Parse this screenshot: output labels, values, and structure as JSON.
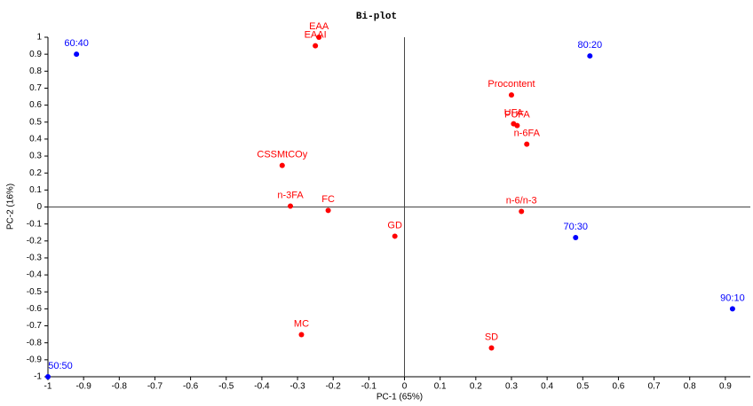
{
  "chart_data": {
    "type": "scatter",
    "title": "Bi-plot",
    "x_label": "PC-1 (65%)",
    "y_label": "PC-2 (16%)",
    "xlim": [
      -1,
      0.97
    ],
    "ylim": [
      -1,
      1
    ],
    "xticks": [
      -1,
      -0.9,
      -0.8,
      -0.7,
      -0.6,
      -0.5,
      -0.4,
      -0.3,
      -0.2,
      -0.1,
      0,
      0.1,
      0.2,
      0.3,
      0.4,
      0.5,
      0.6,
      0.7,
      0.8,
      0.9
    ],
    "yticks": [
      -1,
      -0.9,
      -0.8,
      -0.7,
      -0.6,
      -0.5,
      -0.4,
      -0.3,
      -0.2,
      -0.1,
      0,
      0.1,
      0.2,
      0.3,
      0.4,
      0.5,
      0.6,
      0.7,
      0.8,
      0.9,
      1
    ],
    "series": [
      {
        "color": "#0000ff",
        "labels": [
          "60:40",
          "80:20",
          "70:30",
          "90:10",
          "50:50"
        ],
        "x": [
          -0.92,
          0.52,
          0.48,
          0.92,
          -1
        ],
        "values": [
          0.9,
          0.89,
          -0.18,
          -0.6,
          -1
        ]
      },
      {
        "color": "#ff0000",
        "labels": [
          "EAA",
          "EAAI",
          "Procontent",
          "UFA",
          "PUFA",
          "n-6FA",
          "CSSMtCOy",
          "n-3FA",
          "FC",
          "n-6/n-3",
          "GD",
          "MC",
          "SD"
        ],
        "x": [
          -0.24,
          -0.25,
          0.3,
          0.306,
          0.316,
          0.343,
          -0.343,
          -0.32,
          -0.214,
          0.328,
          -0.027,
          -0.289,
          0.244
        ],
        "values": [
          1.0,
          0.95,
          0.66,
          0.49,
          0.48,
          0.37,
          0.245,
          0.005,
          -0.02,
          -0.026,
          -0.172,
          -0.752,
          -0.83
        ]
      }
    ]
  }
}
